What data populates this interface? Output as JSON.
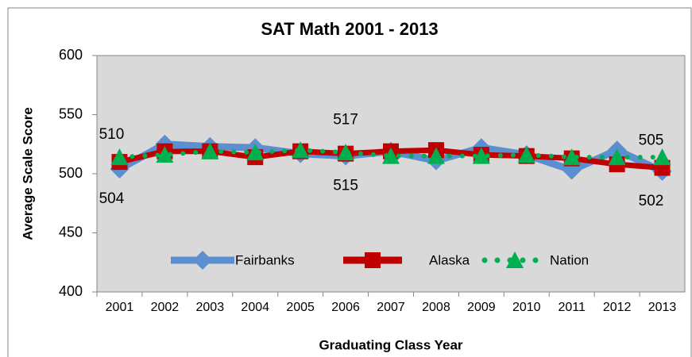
{
  "chart_data": {
    "type": "line",
    "title": "SAT Math 2001 - 2013",
    "x_label": "Graduating Class Year",
    "y_label": "Average Scale Score",
    "categories": [
      "2001",
      "2002",
      "2003",
      "2004",
      "2005",
      "2006",
      "2007",
      "2008",
      "2009",
      "2010",
      "2011",
      "2012",
      "2013"
    ],
    "series": [
      {
        "name": "Fairbanks",
        "color": "#5b8fd0",
        "values": [
          504,
          525,
          523,
          522,
          517,
          515,
          519,
          511,
          522,
          516,
          503,
          520,
          502
        ]
      },
      {
        "name": "Alaska",
        "color": "#c00000",
        "values": [
          510,
          519,
          519,
          514,
          519,
          517,
          519,
          520,
          516,
          515,
          513,
          508,
          505
        ]
      },
      {
        "name": "Nation",
        "color": "#00b050",
        "values": [
          514,
          516,
          519,
          518,
          520,
          518,
          515,
          515,
          515,
          516,
          514,
          514,
          514
        ]
      }
    ],
    "ylim": [
      400,
      600
    ],
    "yticks": [
      400,
      450,
      500,
      550,
      600
    ],
    "legend": "bottom"
  }
}
